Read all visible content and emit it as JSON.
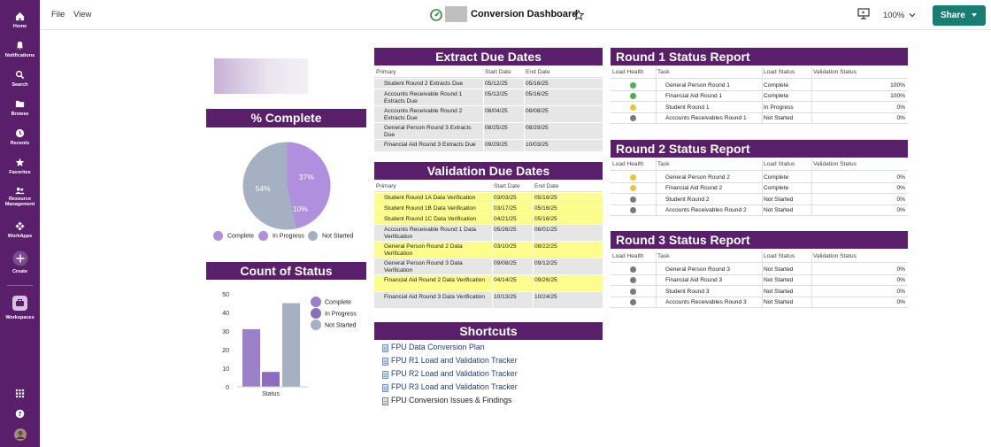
{
  "nav": {
    "home": "Home",
    "notifications": "Notifications",
    "search": "Search",
    "browse": "Browse",
    "recents": "Recents",
    "favorites": "Favorites",
    "resource_management": "Resource Management",
    "workapps": "WorkApps",
    "create": "Create",
    "workspaces": "Workspaces"
  },
  "menu": {
    "file": "File",
    "view": "View"
  },
  "title": "Conversion Dashboard",
  "zoom": "100%",
  "share_label": "Share",
  "colors": {
    "purple": "#5a1f6b",
    "teal": "#1a7d74",
    "highlight": "#fdfd8e",
    "grey_row": "#e6e6e6",
    "pie_purple": "#b08fde",
    "pie_grey": "#a5b1c2",
    "green": "#4caf50",
    "yellow": "#f1c232",
    "gray": "#7a7a7a"
  },
  "percent_complete": {
    "title": "% Complete",
    "legend": [
      "Complete",
      "In Progress",
      "Not Started"
    ]
  },
  "count_status": {
    "title": "Count of Status",
    "legend": [
      "Complete",
      "In Progress",
      "Not Started"
    ]
  },
  "chart_data": [
    {
      "type": "pie",
      "labels": [
        "Complete",
        "In Progress",
        "Not Started"
      ],
      "values": [
        37,
        10,
        54
      ],
      "value_labels": [
        "37%",
        "10%",
        "54%"
      ]
    },
    {
      "type": "bar",
      "categories": [
        "Status"
      ],
      "xlabel": "Status",
      "ylim": [
        0,
        50
      ],
      "yticks": [
        "50",
        "40",
        "30",
        "20",
        "10",
        "0"
      ],
      "series": [
        {
          "name": "Complete",
          "values": [
            31
          ]
        },
        {
          "name": "In Progress",
          "values": [
            8
          ]
        },
        {
          "name": "Not Started",
          "values": [
            45
          ]
        }
      ]
    }
  ],
  "extract": {
    "title": "Extract Due Dates",
    "headers": [
      "Primary",
      "Start Date",
      "End Date"
    ],
    "rows": [
      [
        "Student Round 2 Extracts Due",
        "05/12/25",
        "05/16/25"
      ],
      [
        "Accounts Receivable Round 1 Extracts Due",
        "05/12/25",
        "05/16/25"
      ],
      [
        "Accounts Receivable Round 2 Extracts Due",
        "08/04/25",
        "08/08/25"
      ],
      [
        "General Person Round 3 Extracts Due",
        "08/25/25",
        "08/29/25"
      ],
      [
        "Financial Aid Round 3 Extracts Due",
        "09/29/25",
        "10/03/25"
      ]
    ]
  },
  "validation": {
    "title": "Validation Due Dates",
    "headers": [
      "Primary",
      "Start Date",
      "End Date"
    ],
    "rows": [
      [
        "Student Round 1A Data Verification",
        "03/03/25",
        "05/16/25"
      ],
      [
        "Student Round 1B Data Verification",
        "03/17/25",
        "05/16/25"
      ],
      [
        "Student Round 1C Data Verification",
        "04/21/25",
        "05/16/25"
      ],
      [
        "Accounts Receivable Round 1 Data Verification",
        "05/26/25",
        "08/01/25"
      ],
      [
        "General Person Round 2 Data Verification",
        "03/10/25",
        "08/22/25"
      ],
      [
        "General Person Round 3 Data Verification",
        "09/08/25",
        "09/12/25"
      ],
      [
        "Financial Aid Round 2 Data Verification",
        "04/14/25",
        "09/26/25"
      ],
      [
        "Financial Aid Round 3 Data Verification",
        "10/13/25",
        "10/24/25"
      ]
    ]
  },
  "shortcuts": {
    "title": "Shortcuts",
    "items": [
      "FPU Data Conversion Plan",
      "FPU R1 Load and Validation Tracker",
      "FPU R2 Load and Validation Tracker",
      "FPU R3 Load and Validation Tracker",
      "FPU Conversion Issues & Findings"
    ]
  },
  "status_headers": [
    "Load Health",
    "Task",
    "Load Status",
    "Validation Status"
  ],
  "round1": {
    "title": "Round 1 Status Report",
    "rows": [
      {
        "health": "green",
        "task": "General Person Round 1",
        "load": "Complete",
        "validation": "100%"
      },
      {
        "health": "green",
        "task": "Financial Aid Round 1",
        "load": "Complete",
        "validation": "100%"
      },
      {
        "health": "yellow",
        "task": "Student Round 1",
        "load": "In Progress",
        "validation": "0%"
      },
      {
        "health": "gray",
        "task": "Accounts Receivables Round 1",
        "load": "Not Started",
        "validation": "0%"
      }
    ]
  },
  "round2": {
    "title": "Round 2 Status Report",
    "rows": [
      {
        "health": "yellow",
        "task": "General Person Round 2",
        "load": "Complete",
        "validation": "0%"
      },
      {
        "health": "yellow",
        "task": "Financial Aid Round 2",
        "load": "Complete",
        "validation": "0%"
      },
      {
        "health": "gray",
        "task": "Student Round 2",
        "load": "Not Started",
        "validation": "0%"
      },
      {
        "health": "gray",
        "task": "Accounts Receivables Round 2",
        "load": "Not Started",
        "validation": "0%"
      }
    ]
  },
  "round3": {
    "title": "Round 3 Status Report",
    "rows": [
      {
        "health": "gray",
        "task": "General Person Round 3",
        "load": "Not Started",
        "validation": "0%"
      },
      {
        "health": "gray",
        "task": "Financial Aid Round 3",
        "load": "Not Started",
        "validation": "0%"
      },
      {
        "health": "gray",
        "task": "Student Round 3",
        "load": "Not Started",
        "validation": "0%"
      },
      {
        "health": "gray",
        "task": "Accounts Receivables Round 3",
        "load": "Not Started",
        "validation": "0%"
      }
    ]
  }
}
